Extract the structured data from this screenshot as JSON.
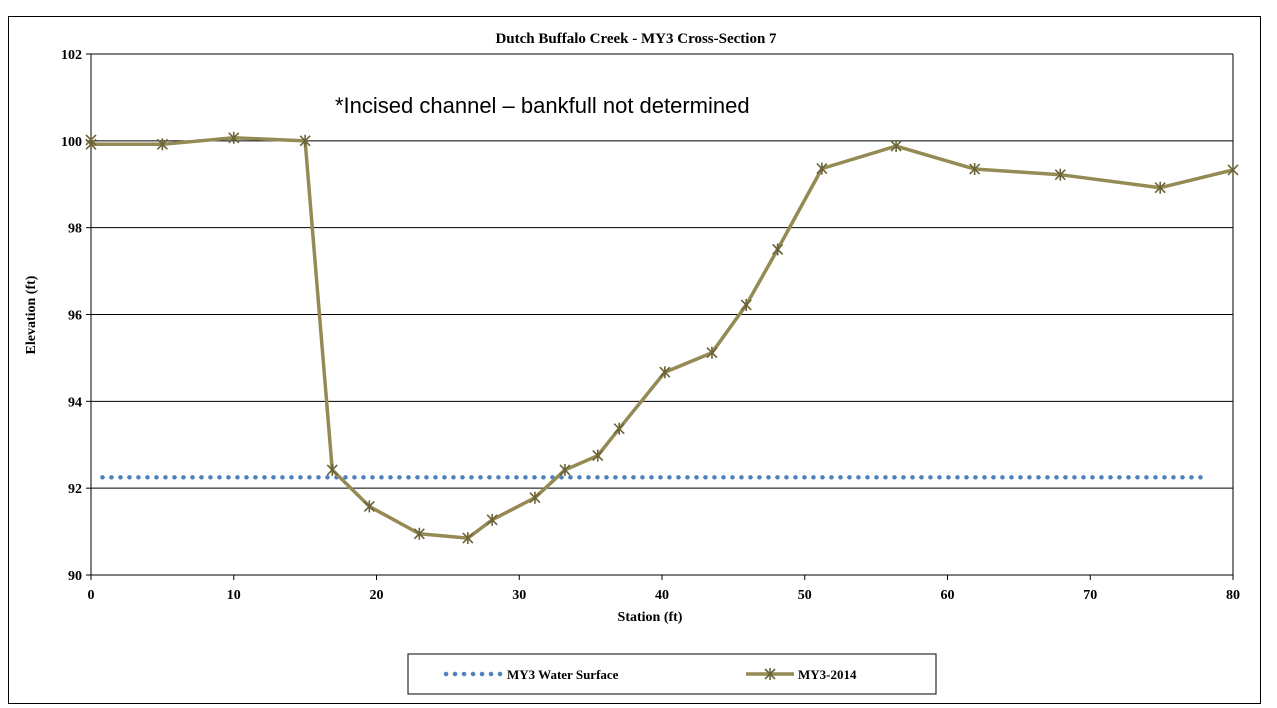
{
  "chart_data": {
    "type": "line",
    "title": "Dutch Buffalo Creek  - MY3 Cross-Section 7",
    "xlabel": "Station (ft)",
    "ylabel": "Elevation (ft)",
    "xlim": [
      0,
      80
    ],
    "ylim": [
      90,
      102
    ],
    "xticks": [
      "0",
      "10",
      "20",
      "30",
      "40",
      "50",
      "60",
      "70",
      "80"
    ],
    "yticks": [
      "90",
      "92",
      "94",
      "96",
      "98",
      "100",
      "102"
    ],
    "grid": "horizontal",
    "legend_position": "bottom",
    "annotation": "*Incised channel – bankfull not determined",
    "series": [
      {
        "name": "MY3 Water Surface",
        "style": "dotted",
        "color": "#4f81bd",
        "x": [
          0.8,
          77.8
        ],
        "y": [
          92.25,
          92.25
        ]
      },
      {
        "name": "MY3-2014",
        "style": "solid-star-markers",
        "color": "#948a54",
        "x": [
          0,
          0,
          5,
          10,
          15,
          16.9,
          19.5,
          23,
          26.4,
          28.1,
          31.1,
          33.2,
          35.5,
          37,
          40.2,
          43.5,
          45.9,
          48.1,
          51.2,
          56.4,
          61.9,
          67.9,
          74.9,
          80
        ],
        "y": [
          100.02,
          99.92,
          99.92,
          100.07,
          100.0,
          92.42,
          91.58,
          90.95,
          90.85,
          91.27,
          91.78,
          92.42,
          92.75,
          93.37,
          94.67,
          95.12,
          96.22,
          97.5,
          99.36,
          99.88,
          99.35,
          99.22,
          98.92,
          99.33
        ]
      }
    ]
  }
}
